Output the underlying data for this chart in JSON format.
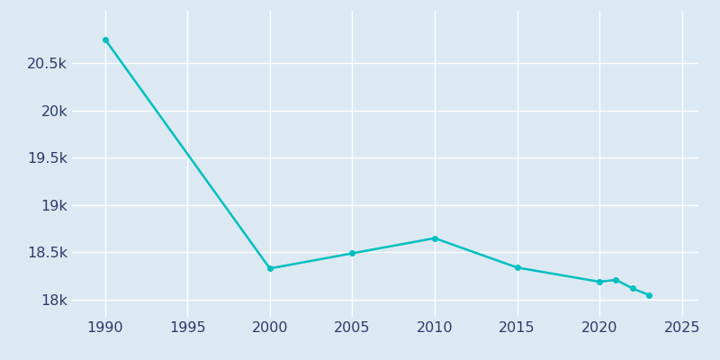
{
  "years": [
    1990,
    2000,
    2005,
    2010,
    2015,
    2020,
    2021,
    2022,
    2023
  ],
  "population": [
    20750,
    18330,
    18490,
    18650,
    18340,
    18190,
    18210,
    18120,
    18050
  ],
  "line_color": "#00BFBF",
  "marker_color": "#00BFBF",
  "bg_color": "#dce9f2",
  "grid_color": "#ffffff",
  "xlim": [
    1988,
    2026
  ],
  "ylim": [
    17820,
    21050
  ],
  "yticks": [
    18000,
    18500,
    19000,
    19500,
    20000,
    20500
  ],
  "xticks": [
    1990,
    1995,
    2000,
    2005,
    2010,
    2015,
    2020,
    2025
  ],
  "tick_label_color": "#2b3a6b",
  "tick_fontsize": 11.5
}
